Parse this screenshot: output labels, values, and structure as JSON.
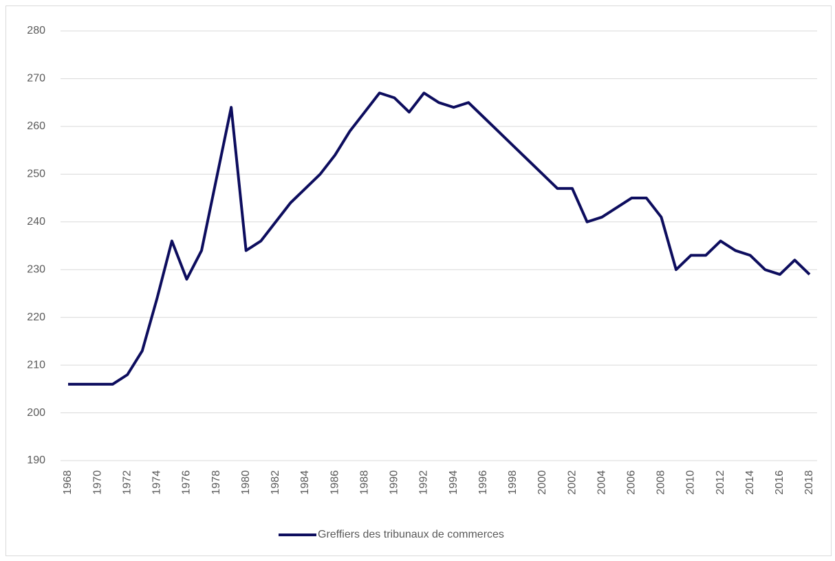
{
  "chart_data": {
    "type": "line",
    "x": [
      1968,
      1969,
      1970,
      1971,
      1972,
      1973,
      1974,
      1975,
      1976,
      1977,
      1978,
      1979,
      1980,
      1981,
      1982,
      1983,
      1984,
      1985,
      1986,
      1987,
      1988,
      1989,
      1990,
      1991,
      1992,
      1993,
      1994,
      1995,
      1996,
      1997,
      1998,
      1999,
      2000,
      2001,
      2002,
      2003,
      2004,
      2005,
      2006,
      2007,
      2008,
      2009,
      2010,
      2011,
      2012,
      2013,
      2014,
      2015,
      2016,
      2017,
      2018
    ],
    "series": [
      {
        "name": "Greffiers des tribunaux de commerces",
        "color": "#0d0d5e",
        "values": [
          206,
          206,
          206,
          206,
          208,
          213,
          224,
          236,
          228,
          234,
          249,
          264,
          234,
          236,
          240,
          244,
          247,
          250,
          254,
          259,
          263,
          267,
          266,
          263,
          267,
          265,
          264,
          265,
          262,
          259,
          256,
          253,
          250,
          247,
          247,
          240,
          241,
          243,
          245,
          245,
          241,
          230,
          233,
          233,
          236,
          234,
          233,
          230,
          229,
          232,
          229
        ]
      }
    ],
    "xlim": [
      1968,
      2018
    ],
    "xticks": [
      1968,
      1970,
      1972,
      1974,
      1976,
      1978,
      1980,
      1982,
      1984,
      1986,
      1988,
      1990,
      1992,
      1994,
      1996,
      1998,
      2000,
      2002,
      2004,
      2006,
      2008,
      2010,
      2012,
      2014,
      2016,
      2018
    ],
    "ylim": [
      190,
      280
    ],
    "yticks": [
      190,
      200,
      210,
      220,
      230,
      240,
      250,
      260,
      270,
      280
    ],
    "grid": true,
    "legend": "bottom"
  }
}
